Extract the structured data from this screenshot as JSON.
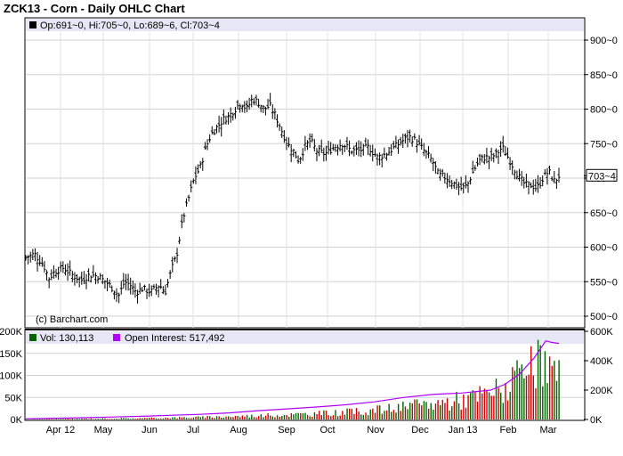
{
  "title": "ZCK13 - Corn - Daily OHLC Chart",
  "watermark": "(c) Barchart.com",
  "ohlc_legend": {
    "text": "Op:691~0, Hi:705~0, Lo:689~6, Cl:703~4",
    "swatch_color": "#000000"
  },
  "last_price_tag": "703~4",
  "volume_legend": {
    "vol_text": "Vol: 130,113",
    "vol_color": "#006400",
    "oi_text": "Open Interest: 517,492",
    "oi_color": "#b000ff"
  },
  "chart_data": [
    {
      "type": "ohlc",
      "title": "ZCK13 - Corn - Daily OHLC Chart",
      "y_axis": {
        "side": "right",
        "range": [
          495,
          920
        ],
        "ticks": [
          900,
          850,
          800,
          750,
          700,
          650,
          600,
          550,
          500
        ],
        "tick_labels": [
          "900~0",
          "850~0",
          "800~0",
          "750~0",
          "700~0",
          "650~0",
          "600~0",
          "550~0",
          "500~0"
        ]
      },
      "x_axis": {
        "month_labels": [
          "Apr 12",
          "May",
          "Jun",
          "Jul",
          "Aug",
          "Sep",
          "Oct",
          "Nov",
          "Dec",
          "Jan 13",
          "Feb",
          "Mar"
        ]
      },
      "grid": true,
      "close_path": [
        {
          "month": 0.0,
          "price": 585
        },
        {
          "month": 0.3,
          "price": 590
        },
        {
          "month": 0.6,
          "price": 575
        },
        {
          "month": 0.8,
          "price": 555
        },
        {
          "month": 1.0,
          "price": 565
        },
        {
          "month": 1.3,
          "price": 570
        },
        {
          "month": 1.6,
          "price": 560
        },
        {
          "month": 1.9,
          "price": 552
        },
        {
          "month": 2.2,
          "price": 560
        },
        {
          "month": 2.5,
          "price": 558
        },
        {
          "month": 2.8,
          "price": 548
        },
        {
          "month": 3.0,
          "price": 540
        },
        {
          "month": 3.2,
          "price": 530
        },
        {
          "month": 3.4,
          "price": 550
        },
        {
          "month": 3.6,
          "price": 545
        },
        {
          "month": 3.8,
          "price": 535
        },
        {
          "month": 4.0,
          "price": 540
        },
        {
          "month": 4.3,
          "price": 535
        },
        {
          "month": 4.6,
          "price": 545
        },
        {
          "month": 4.8,
          "price": 535
        },
        {
          "month": 5.0,
          "price": 565
        },
        {
          "month": 5.2,
          "price": 590
        },
        {
          "month": 5.4,
          "price": 640
        },
        {
          "month": 5.6,
          "price": 670
        },
        {
          "month": 5.8,
          "price": 700
        },
        {
          "month": 6.0,
          "price": 715
        },
        {
          "month": 6.2,
          "price": 745
        },
        {
          "month": 6.4,
          "price": 765
        },
        {
          "month": 6.6,
          "price": 775
        },
        {
          "month": 6.8,
          "price": 785
        },
        {
          "month": 7.0,
          "price": 790
        },
        {
          "month": 7.2,
          "price": 800
        },
        {
          "month": 7.4,
          "price": 810
        },
        {
          "month": 7.6,
          "price": 800
        },
        {
          "month": 7.8,
          "price": 815
        },
        {
          "month": 8.0,
          "price": 810
        },
        {
          "month": 8.2,
          "price": 800
        },
        {
          "month": 8.4,
          "price": 805
        },
        {
          "month": 8.6,
          "price": 790
        },
        {
          "month": 8.8,
          "price": 770
        },
        {
          "month": 9.0,
          "price": 750
        },
        {
          "month": 9.2,
          "price": 740
        },
        {
          "month": 9.4,
          "price": 725
        },
        {
          "month": 9.6,
          "price": 745
        },
        {
          "month": 9.8,
          "price": 755
        },
        {
          "month": 10.0,
          "price": 740
        },
        {
          "month": 10.3,
          "price": 735
        },
        {
          "month": 10.6,
          "price": 745
        },
        {
          "month": 10.9,
          "price": 750
        },
        {
          "month": 11.2,
          "price": 740
        },
        {
          "month": 11.5,
          "price": 740
        },
        {
          "month": 11.8,
          "price": 745
        },
        {
          "month": 12.1,
          "price": 730
        },
        {
          "month": 12.4,
          "price": 735
        },
        {
          "month": 12.7,
          "price": 745
        },
        {
          "month": 13.0,
          "price": 755
        },
        {
          "month": 13.2,
          "price": 760
        },
        {
          "month": 13.4,
          "price": 755
        },
        {
          "month": 13.7,
          "price": 740
        },
        {
          "month": 14.0,
          "price": 725
        },
        {
          "month": 14.2,
          "price": 705
        },
        {
          "month": 14.5,
          "price": 700
        },
        {
          "month": 14.8,
          "price": 690
        },
        {
          "month": 15.0,
          "price": 685
        },
        {
          "month": 15.2,
          "price": 690
        },
        {
          "month": 15.4,
          "price": 710
        },
        {
          "month": 15.6,
          "price": 725
        },
        {
          "month": 15.8,
          "price": 730
        },
        {
          "month": 16.0,
          "price": 730
        },
        {
          "month": 16.2,
          "price": 735
        },
        {
          "month": 16.4,
          "price": 745
        },
        {
          "month": 16.6,
          "price": 730
        },
        {
          "month": 16.8,
          "price": 715
        },
        {
          "month": 17.0,
          "price": 700
        },
        {
          "month": 17.2,
          "price": 690
        },
        {
          "month": 17.4,
          "price": 690
        },
        {
          "month": 17.6,
          "price": 685
        },
        {
          "month": 17.8,
          "price": 700
        },
        {
          "month": 18.0,
          "price": 710
        },
        {
          "month": 18.2,
          "price": 695
        },
        {
          "month": 18.35,
          "price": 703.5
        }
      ]
    },
    {
      "type": "bar",
      "title": "",
      "left_axis": {
        "range": [
          0,
          200000
        ],
        "ticks": [
          0,
          50000,
          100000,
          150000,
          200000
        ],
        "tick_labels": [
          "0K",
          "50K",
          "100K",
          "150K",
          "200K"
        ]
      },
      "right_axis": {
        "range": [
          0,
          600000
        ],
        "ticks": [
          0,
          200000,
          400000,
          600000
        ],
        "tick_labels": [
          "0K",
          "200K",
          "400K",
          "600K"
        ]
      },
      "series": [
        {
          "name": "Vol",
          "type": "bar",
          "colors": [
            "#006400",
            "#d00000"
          ],
          "latest": 130113,
          "envelope": [
            {
              "month": 0.0,
              "volume": 1500
            },
            {
              "month": 2.0,
              "volume": 2500
            },
            {
              "month": 4.0,
              "volume": 4000
            },
            {
              "month": 6.0,
              "volume": 7000
            },
            {
              "month": 8.0,
              "volume": 12000
            },
            {
              "month": 10.0,
              "volume": 18000
            },
            {
              "month": 11.5,
              "volume": 25000
            },
            {
              "month": 13.0,
              "volume": 38000
            },
            {
              "month": 14.5,
              "volume": 55000
            },
            {
              "month": 15.5,
              "volume": 70000
            },
            {
              "month": 16.5,
              "volume": 100000
            },
            {
              "month": 17.2,
              "volume": 140000
            },
            {
              "month": 17.8,
              "volume": 175000
            },
            {
              "month": 18.35,
              "volume": 130113
            }
          ]
        },
        {
          "name": "Open Interest",
          "type": "line",
          "color": "#b000ff",
          "latest": 517492,
          "values": [
            {
              "month": 0.0,
              "oi": 5000
            },
            {
              "month": 2.0,
              "oi": 12000
            },
            {
              "month": 4.0,
              "oi": 22000
            },
            {
              "month": 6.0,
              "oi": 35000
            },
            {
              "month": 7.0,
              "oi": 45000
            },
            {
              "month": 8.0,
              "oi": 60000
            },
            {
              "month": 9.0,
              "oi": 72000
            },
            {
              "month": 10.0,
              "oi": 85000
            },
            {
              "month": 11.0,
              "oi": 100000
            },
            {
              "month": 12.0,
              "oi": 120000
            },
            {
              "month": 13.0,
              "oi": 150000
            },
            {
              "month": 14.0,
              "oi": 170000
            },
            {
              "month": 15.0,
              "oi": 180000
            },
            {
              "month": 16.0,
              "oi": 200000
            },
            {
              "month": 16.5,
              "oi": 240000
            },
            {
              "month": 17.0,
              "oi": 310000
            },
            {
              "month": 17.5,
              "oi": 420000
            },
            {
              "month": 17.9,
              "oi": 535000
            },
            {
              "month": 18.1,
              "oi": 525000
            },
            {
              "month": 18.35,
              "oi": 517492
            }
          ]
        }
      ]
    }
  ]
}
